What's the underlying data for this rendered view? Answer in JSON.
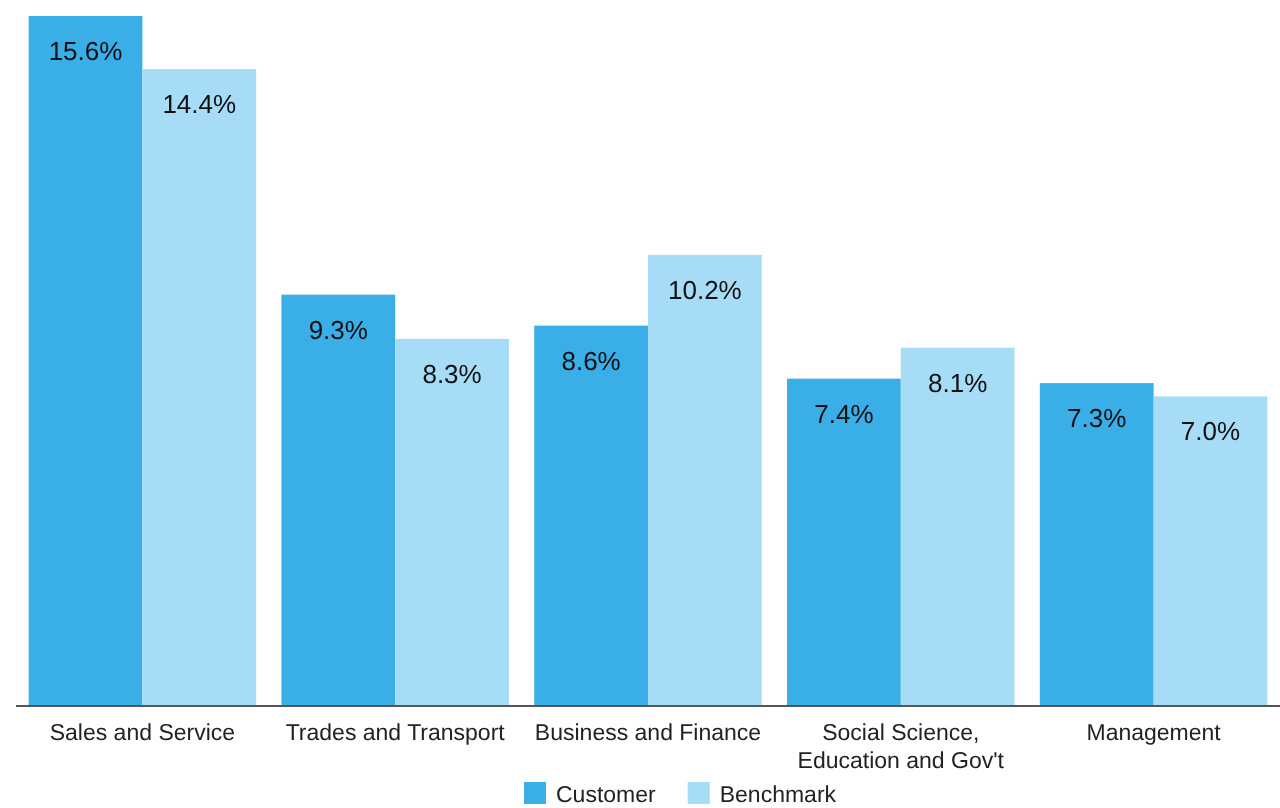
{
  "chart_data": {
    "type": "bar",
    "categories": [
      "Sales and Service",
      "Trades and Transport",
      "Business and Finance",
      "Social Science, Education and Gov't",
      "Management"
    ],
    "series": [
      {
        "name": "Customer",
        "color": "#3aaee6",
        "values": [
          15.6,
          9.3,
          8.6,
          7.4,
          7.3
        ],
        "value_labels": [
          "15.6%",
          "9.3%",
          "8.6%",
          "7.4%",
          "7.3%"
        ]
      },
      {
        "name": "Benchmark",
        "color": "#a6dcf5",
        "values": [
          14.4,
          8.3,
          10.2,
          8.1,
          7.0
        ],
        "value_labels": [
          "14.4%",
          "8.3%",
          "10.2%",
          "8.1%",
          "7.0%"
        ]
      }
    ],
    "legend": "bottom"
  }
}
